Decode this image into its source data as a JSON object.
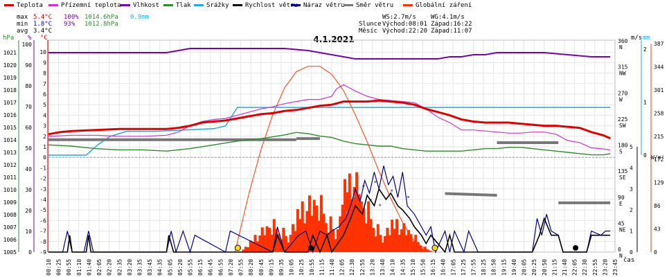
{
  "legend": [
    {
      "label": "Teplota",
      "color": "#e00000"
    },
    {
      "label": "Přízemní teplota",
      "color": "#cc33cc"
    },
    {
      "label": "Vlhkost",
      "color": "#7a00aa"
    },
    {
      "label": "Tlak",
      "color": "#2e8b2e"
    },
    {
      "label": "Srážky",
      "color": "#22aadd"
    },
    {
      "label": "Rychlost větru",
      "color": "#000000"
    },
    {
      "label": "Náraz větru",
      "color": "#00008b"
    },
    {
      "label": "Směr větru",
      "color": "#777777"
    },
    {
      "label": "Globální záření",
      "color": "#ff3300"
    }
  ],
  "stats": {
    "max_label": "max",
    "max_temp": "5.4°C",
    "max_hum": "100%",
    "max_press": "1014.6hPa",
    "max_rain": "0.9mm",
    "min_label": "min",
    "min_temp": "1.8°C",
    "min_hum": "93%",
    "min_press": "1012.8hPa",
    "avg_label": "avg",
    "avg_temp": "3.4°C"
  },
  "info": {
    "ws": "WS:2.7m/s",
    "wg": "WG:4.1m/s",
    "sun_label": "Slunce",
    "sun_rise": "Východ:08:01",
    "sun_set": "Západ:16:22",
    "moon_label": "Měsíc",
    "moon_rise": "Východ:22:20",
    "moon_set": "Západ:11:07"
  },
  "axis_units": {
    "hpa": "hPa",
    "pct": "%",
    "degc": "°C",
    "ms": "m/s",
    "mm": "mm",
    "wm2": "W/m²",
    "time": "čas"
  },
  "chart_data": {
    "type": "line",
    "title": "4.1.2021",
    "x_ticks": [
      "00:10",
      "00:25",
      "00:55",
      "01:10",
      "01:40",
      "02:05",
      "02:20",
      "02:35",
      "03:20",
      "03:35",
      "03:45",
      "04:35",
      "05:05",
      "05:20",
      "05:55",
      "06:15",
      "06:45",
      "06:55",
      "07:20",
      "07:55",
      "08:20",
      "08:45",
      "09:15",
      "09:35",
      "10:05",
      "10:25",
      "10:55",
      "11:15",
      "11:40",
      "12:05",
      "12:30",
      "12:55",
      "13:20",
      "13:40",
      "14:10",
      "14:35",
      "15:10",
      "15:50",
      "16:15",
      "16:40",
      "17:05",
      "17:25",
      "17:55",
      "18:25",
      "18:50",
      "19:15",
      "19:40",
      "20:05",
      "20:25",
      "20:50",
      "21:15",
      "21:40",
      "22:05",
      "22:30",
      "22:55",
      "23:20",
      "23:45"
    ],
    "axes": {
      "pressure_hpa": {
        "ticks": [
          1005,
          1006,
          1007,
          1008,
          1009,
          1010,
          1011,
          1012,
          1013,
          1014,
          1015,
          1016,
          1017,
          1018,
          1019,
          1020,
          1021
        ]
      },
      "humidity_pct": {
        "ticks": [
          0,
          10,
          20,
          30,
          40,
          50,
          60,
          70,
          80,
          90,
          100
        ]
      },
      "temperature_c": {
        "ticks": [
          -9,
          -8,
          -7,
          -6,
          -5,
          -4,
          -3,
          -2,
          -1,
          0,
          1,
          2,
          3,
          4,
          5,
          6,
          7,
          8,
          9,
          10
        ]
      },
      "wind_dir_deg": {
        "ticks": [
          0,
          45,
          90,
          135,
          180,
          225,
          270,
          315,
          360
        ],
        "labels": [
          "N",
          "NE",
          "E",
          "SE",
          "S",
          "SW",
          "W",
          "NW",
          "N"
        ]
      },
      "wind_ms": {
        "ticks": [
          0,
          1,
          2,
          3,
          4,
          5
        ]
      },
      "rain_mm": {
        "ticks": [
          0,
          1,
          2
        ]
      },
      "radiation_wm2": {
        "ticks": [
          0,
          43,
          86,
          129,
          172,
          215,
          258,
          301,
          344,
          387
        ]
      }
    },
    "series": [
      {
        "name": "Teplota",
        "unit": "°C",
        "x": [
          0,
          0.5,
          1,
          2,
          3,
          4,
          5,
          5.5,
          6,
          6.5,
          7,
          7.5,
          8,
          8.5,
          9,
          9.5,
          10,
          10.5,
          11,
          11.5,
          12,
          12.5,
          13,
          13.5,
          14,
          14.5,
          15,
          15.5,
          16,
          16.5,
          17,
          17.5,
          18,
          18.5,
          19,
          19.5,
          20,
          20.5,
          21,
          21.5,
          22,
          22.5,
          23,
          23.5,
          23.8
        ],
        "y": [
          2.2,
          2.4,
          2.5,
          2.6,
          2.7,
          2.7,
          2.7,
          2.8,
          3.0,
          3.3,
          3.4,
          3.5,
          3.7,
          3.9,
          4.1,
          4.2,
          4.4,
          4.5,
          4.7,
          4.9,
          5.0,
          5.3,
          5.3,
          5.3,
          5.4,
          5.3,
          5.2,
          5.0,
          4.6,
          4.3,
          4.0,
          3.6,
          3.4,
          3.3,
          3.3,
          3.3,
          3.2,
          3.1,
          3.0,
          3.0,
          2.9,
          2.8,
          2.4,
          2.1,
          1.8
        ]
      },
      {
        "name": "Přízemní teplota",
        "unit": "°C",
        "x": [
          0,
          1,
          2,
          3,
          4,
          5,
          5.5,
          6,
          6.5,
          7,
          7.5,
          8,
          8.5,
          9,
          9.5,
          10,
          10.5,
          11,
          11.5,
          12,
          12.2,
          12.5,
          13,
          13.5,
          14,
          14.5,
          15,
          15.5,
          16,
          16.5,
          17,
          17.5,
          18,
          18.5,
          19,
          19.5,
          20,
          20.5,
          21,
          21.5,
          22,
          22.5,
          23,
          23.5,
          23.8
        ],
        "y": [
          2.0,
          2.1,
          2.1,
          2.0,
          2.0,
          2.1,
          2.4,
          3.0,
          3.4,
          3.6,
          3.7,
          4.0,
          4.3,
          4.6,
          4.8,
          5.1,
          5.3,
          5.5,
          5.5,
          5.8,
          6.5,
          6.9,
          6.3,
          5.8,
          5.5,
          5.4,
          5.3,
          5.2,
          4.6,
          3.8,
          3.3,
          2.6,
          2.6,
          2.5,
          2.4,
          2.3,
          2.3,
          2.4,
          2.4,
          2.2,
          1.6,
          1.4,
          0.9,
          0.8,
          0.7
        ]
      },
      {
        "name": "Vlhkost",
        "unit": "%",
        "x": [
          0,
          1,
          2,
          3,
          4,
          5,
          5.5,
          6,
          7,
          8,
          9,
          10,
          11,
          11.5,
          12,
          12.5,
          13,
          13.5,
          14,
          14.5,
          15,
          15.5,
          16,
          16.5,
          17,
          17.5,
          18,
          18.5,
          19,
          20,
          21,
          22,
          23,
          23.8
        ],
        "y": [
          96,
          96,
          96,
          96,
          96,
          96,
          97,
          98,
          98,
          98,
          98,
          98,
          97,
          96,
          95,
          94,
          93,
          93,
          93,
          93,
          93,
          93,
          93,
          93,
          94,
          94,
          95,
          95,
          96,
          96,
          96,
          95,
          94,
          94
        ]
      },
      {
        "name": "Tlak",
        "unit": "hPa",
        "x": [
          0,
          1,
          2,
          3,
          4,
          5,
          6,
          7,
          8,
          9,
          10,
          10.5,
          11,
          11.5,
          12,
          12.5,
          13,
          13.5,
          14,
          14.5,
          15,
          15.5,
          16,
          16.5,
          17,
          17.5,
          18,
          18.5,
          19,
          19.5,
          20,
          20.5,
          21,
          21.5,
          22,
          22.5,
          23,
          23.5,
          23.8
        ],
        "y": [
          1013.6,
          1013.5,
          1013.3,
          1013.2,
          1013.2,
          1013.1,
          1013.3,
          1013.6,
          1013.9,
          1014.1,
          1014.4,
          1014.6,
          1014.5,
          1014.3,
          1014.2,
          1013.9,
          1013.7,
          1013.6,
          1013.5,
          1013.5,
          1013.3,
          1013.2,
          1013.1,
          1013.1,
          1013.1,
          1013.1,
          1013.2,
          1013.3,
          1013.3,
          1013.4,
          1013.4,
          1013.3,
          1013.2,
          1013.1,
          1013.0,
          1012.9,
          1012.8,
          1012.8,
          1012.9
        ]
      },
      {
        "name": "Srážky",
        "unit": "mm",
        "x": [
          0,
          1.6,
          2.1,
          2.6,
          3.3,
          4.5,
          7.0,
          7.5,
          8.0,
          23.8
        ],
        "y": [
          0.0,
          0.0,
          0.2,
          0.35,
          0.45,
          0.45,
          0.5,
          0.55,
          0.9,
          0.9
        ]
      },
      {
        "name": "Rychlost větru",
        "unit": "m/s",
        "x": [
          0,
          0.8,
          0.9,
          1.0,
          1.6,
          1.7,
          1.8,
          5.0,
          5.1,
          5.3,
          9.5,
          9.7,
          10.0,
          11.0,
          11.2,
          11.5,
          11.8,
          12.0,
          12.5,
          12.8,
          13.0,
          13.3,
          13.5,
          13.8,
          14.0,
          14.3,
          14.5,
          14.8,
          15.0,
          15.3,
          15.5,
          15.8,
          16.0,
          16.2,
          16.8,
          17.0,
          17.2,
          20.5,
          20.8,
          21.0,
          21.3,
          21.6,
          21.8,
          22.8,
          23.0,
          23.5,
          23.8
        ],
        "y": [
          0,
          0,
          0.8,
          0,
          0,
          0.8,
          0,
          0,
          0.8,
          0,
          0,
          0.8,
          0,
          0,
          0.8,
          0,
          0.8,
          0,
          0.8,
          1.6,
          2.2,
          1.8,
          2.7,
          2.2,
          3.0,
          2.5,
          2.8,
          2.2,
          2.0,
          1.6,
          1.2,
          0.8,
          0.4,
          0.8,
          0,
          0.8,
          0,
          0,
          0.8,
          1.6,
          0.8,
          0.8,
          0,
          0,
          0.8,
          0.8,
          0.8
        ]
      },
      {
        "name": "Náraz větru",
        "unit": "m/s",
        "x": [
          0,
          0.6,
          0.8,
          1.0,
          1.5,
          1.7,
          1.9,
          5.0,
          5.2,
          5.4,
          5.7,
          6.0,
          6.2,
          7.5,
          7.7,
          9.5,
          9.7,
          10.0,
          10.6,
          10.9,
          11.2,
          11.5,
          11.8,
          12.0,
          12.3,
          12.6,
          12.8,
          13.0,
          13.2,
          13.4,
          13.6,
          13.8,
          14.0,
          14.2,
          14.4,
          14.6,
          14.8,
          15.0,
          15.2,
          15.5,
          15.8,
          16.0,
          16.2,
          16.4,
          16.8,
          17.0,
          17.2,
          17.6,
          17.8,
          18.2,
          20.5,
          20.7,
          20.9,
          21.1,
          21.3,
          21.6,
          21.8,
          22.8,
          23.0,
          23.4,
          23.6,
          23.8
        ],
        "y": [
          0,
          0,
          1.0,
          0,
          0,
          1.0,
          0,
          0,
          1.0,
          0,
          1.0,
          0,
          0.8,
          0,
          1.0,
          0,
          1.2,
          0,
          0.8,
          1.0,
          0,
          1.0,
          0.8,
          1.0,
          1.2,
          1.6,
          2.2,
          3.0,
          2.4,
          3.4,
          2.8,
          3.8,
          3.0,
          4.1,
          3.2,
          3.6,
          2.6,
          3.8,
          2.2,
          1.8,
          1.2,
          0.8,
          1.2,
          0,
          1.0,
          0,
          1.0,
          0,
          1.0,
          0,
          0,
          1.6,
          0.8,
          1.8,
          1.0,
          0.8,
          0,
          0,
          1.0,
          0.8,
          1.0,
          1.0
        ]
      },
      {
        "name": "Směr větru",
        "unit": "°",
        "x": [
          0,
          10.5,
          10.5,
          11.5,
          16.8,
          19.0,
          19.0,
          21.6,
          21.6,
          23.8
        ],
        "y": [
          194,
          194,
          196,
          196,
          101,
          98,
          189,
          189,
          85,
          85
        ]
      },
      {
        "name": "Globální záření",
        "unit": "W/m²",
        "x": [
          7.9,
          8.5,
          9,
          9.5,
          10,
          10.5,
          11,
          11.5,
          12,
          12.5,
          13,
          13.5,
          14,
          14.5,
          15,
          15.5,
          16,
          16.3
        ],
        "y": [
          0,
          110,
          190,
          255,
          305,
          335,
          345,
          345,
          330,
          300,
          255,
          205,
          150,
          100,
          55,
          20,
          5,
          0
        ]
      }
    ]
  }
}
